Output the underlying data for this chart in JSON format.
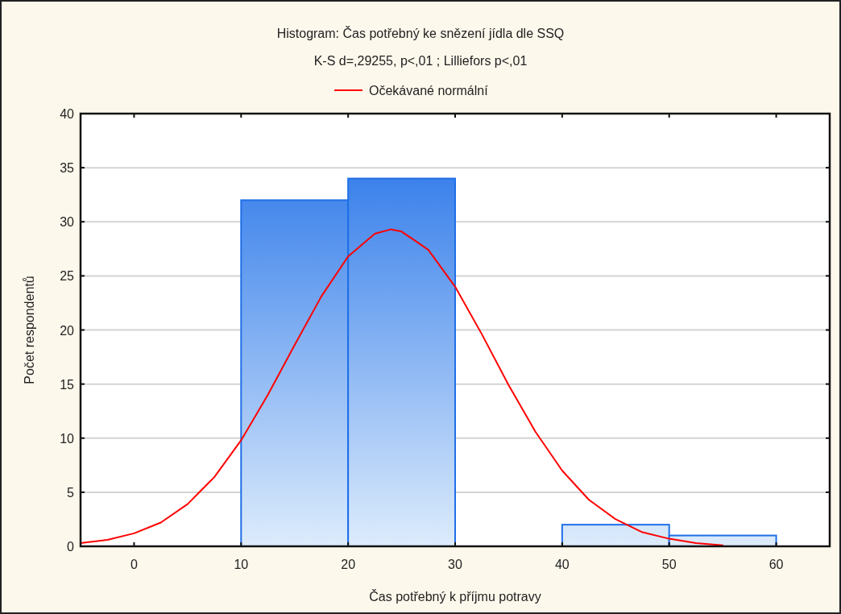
{
  "chart_data": {
    "type": "histogram",
    "title": "Histogram: Čas potřebný ke snězení jídla dle SSQ",
    "subtitle": "K-S d=,29255, p<,01 ; Lilliefors p<,01",
    "xlabel": "Čas potřebný k příjmu potravy",
    "ylabel": "Počet respondentů",
    "bins": [
      10,
      20,
      30,
      40,
      50,
      60
    ],
    "values": [
      32,
      34,
      0,
      2,
      1
    ],
    "color": "#1f6fe8",
    "series": [
      {
        "name": "Očekávané normální",
        "type": "line",
        "color": "#ff0000",
        "x": [
          -5,
          -2.5,
          0,
          2.5,
          5,
          7.5,
          10,
          12.5,
          15,
          17.5,
          20,
          22.5,
          24,
          25,
          27.5,
          30,
          32.5,
          35,
          37.5,
          40,
          42.5,
          45,
          47.5,
          50,
          52.5,
          55
        ],
        "values": [
          0.3,
          0.6,
          1.2,
          2.2,
          3.9,
          6.4,
          9.8,
          14,
          18.6,
          23.1,
          26.8,
          28.9,
          29.3,
          29.1,
          27.4,
          24,
          19.6,
          14.9,
          10.6,
          7,
          4.3,
          2.5,
          1.3,
          0.7,
          0.3,
          0.1
        ]
      }
    ],
    "xlim": [
      -5,
      65
    ],
    "xticks": [
      0,
      10,
      20,
      30,
      40,
      50,
      60
    ],
    "ylim": [
      0,
      40
    ],
    "yticks": [
      0,
      5,
      10,
      15,
      20,
      25,
      30,
      35,
      40
    ],
    "grid": "y",
    "legend": "top",
    "line_style": "solid",
    "marker": "none"
  }
}
